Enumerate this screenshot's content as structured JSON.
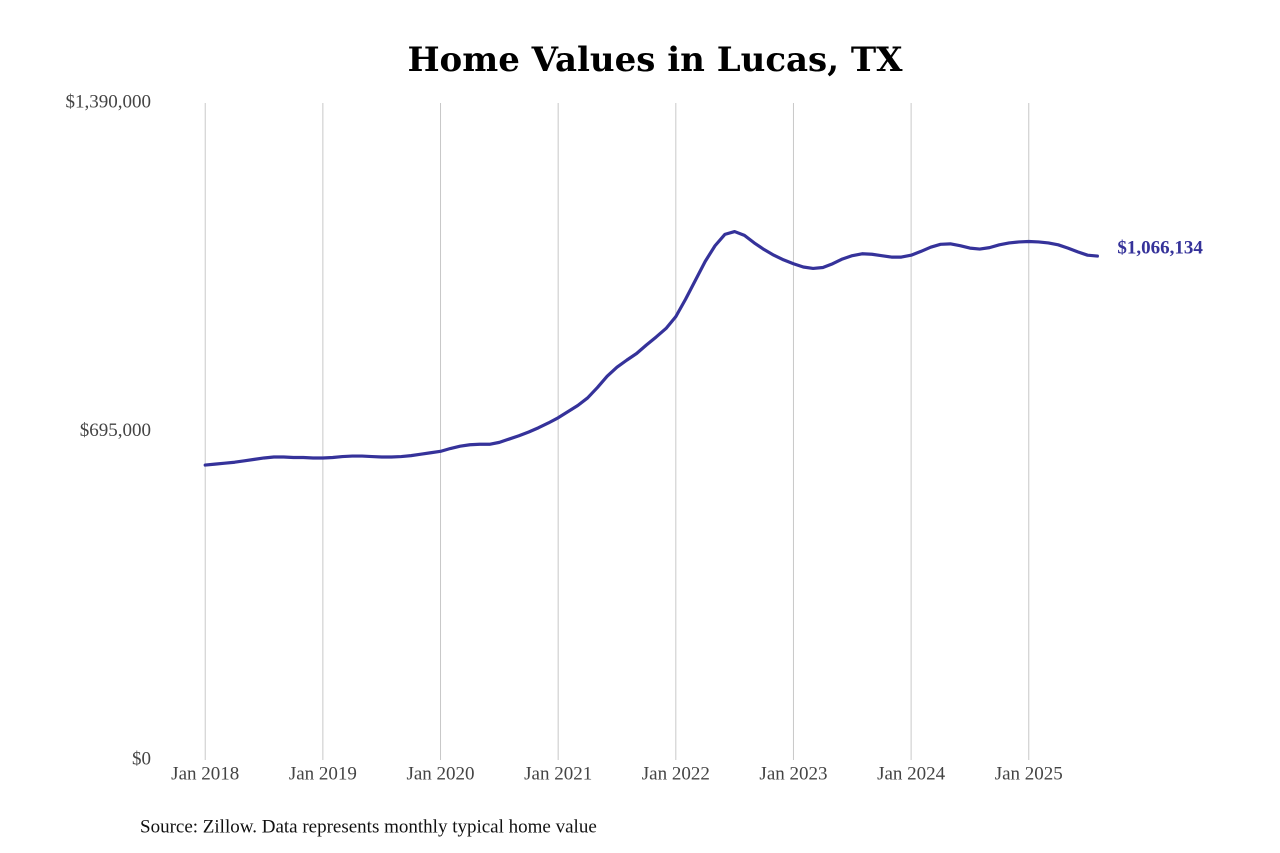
{
  "chart_data": {
    "type": "line",
    "title": "Home Values in Lucas, TX",
    "source": "Source: Zillow. Data represents monthly typical home value",
    "color": "#35329a",
    "x": [
      "2018-01",
      "2018-02",
      "2018-03",
      "2018-04",
      "2018-05",
      "2018-06",
      "2018-07",
      "2018-08",
      "2018-09",
      "2018-10",
      "2018-11",
      "2018-12",
      "2019-01",
      "2019-02",
      "2019-03",
      "2019-04",
      "2019-05",
      "2019-06",
      "2019-07",
      "2019-08",
      "2019-09",
      "2019-10",
      "2019-11",
      "2019-12",
      "2020-01",
      "2020-02",
      "2020-03",
      "2020-04",
      "2020-05",
      "2020-06",
      "2020-07",
      "2020-08",
      "2020-09",
      "2020-10",
      "2020-11",
      "2020-12",
      "2021-01",
      "2021-02",
      "2021-03",
      "2021-04",
      "2021-05",
      "2021-06",
      "2021-07",
      "2021-08",
      "2021-09",
      "2021-10",
      "2021-11",
      "2021-12",
      "2022-01",
      "2022-02",
      "2022-03",
      "2022-04",
      "2022-05",
      "2022-06",
      "2022-07",
      "2022-08",
      "2022-09",
      "2022-10",
      "2022-11",
      "2022-12",
      "2023-01",
      "2023-02",
      "2023-03",
      "2023-04",
      "2023-05",
      "2023-06",
      "2023-07",
      "2023-08",
      "2023-09",
      "2023-10",
      "2023-11",
      "2023-12",
      "2024-01",
      "2024-02",
      "2024-03",
      "2024-04",
      "2024-05",
      "2024-06",
      "2024-07",
      "2024-08",
      "2024-09",
      "2024-10",
      "2024-11",
      "2024-12",
      "2025-01",
      "2025-02",
      "2025-03",
      "2025-04",
      "2025-05",
      "2025-06",
      "2025-07",
      "2025-08"
    ],
    "values": [
      624000,
      626000,
      628000,
      630000,
      633000,
      636000,
      639000,
      641000,
      641000,
      640000,
      640000,
      639000,
      639000,
      640000,
      642000,
      643000,
      643000,
      642000,
      641000,
      641000,
      642000,
      644000,
      647000,
      650000,
      653000,
      659000,
      664000,
      667000,
      668000,
      668000,
      672000,
      679000,
      686000,
      694000,
      703000,
      713000,
      724000,
      737000,
      750000,
      766000,
      788000,
      812000,
      831000,
      846000,
      860000,
      878000,
      895000,
      913000,
      938000,
      975000,
      1015000,
      1055000,
      1088000,
      1112000,
      1118000,
      1110000,
      1094000,
      1080000,
      1068000,
      1058000,
      1050000,
      1043000,
      1040000,
      1042000,
      1050000,
      1060000,
      1067000,
      1071000,
      1070000,
      1067000,
      1064000,
      1064000,
      1068000,
      1076000,
      1085000,
      1091000,
      1092000,
      1088000,
      1083000,
      1081000,
      1084000,
      1090000,
      1094000,
      1096000,
      1097000,
      1096000,
      1094000,
      1090000,
      1083000,
      1075000,
      1068000,
      1066134
    ],
    "value_labels": [
      null,
      null,
      null,
      null,
      null,
      null,
      null,
      null,
      null,
      null,
      null,
      null,
      null,
      null,
      null,
      null,
      null,
      null,
      null,
      null,
      null,
      null,
      null,
      null,
      null,
      null,
      null,
      null,
      null,
      null,
      null,
      null,
      null,
      null,
      null,
      null,
      null,
      null,
      null,
      null,
      null,
      null,
      null,
      null,
      null,
      null,
      null,
      null,
      null,
      null,
      null,
      null,
      null,
      null,
      null,
      null,
      null,
      null,
      null,
      null,
      null,
      null,
      null,
      null,
      null,
      null,
      null,
      null,
      null,
      null,
      null,
      null,
      null,
      null,
      null,
      null,
      null,
      null,
      null,
      null,
      null,
      null,
      null,
      null,
      null,
      null,
      null,
      null,
      null,
      null,
      null,
      "$1,066,134"
    ],
    "xlim": [
      "2017-09",
      "2025-10"
    ],
    "xticks": [
      {
        "value": "2018-01",
        "label": "Jan 2018"
      },
      {
        "value": "2019-01",
        "label": "Jan 2019"
      },
      {
        "value": "2020-01",
        "label": "Jan 2020"
      },
      {
        "value": "2021-01",
        "label": "Jan 2021"
      },
      {
        "value": "2022-01",
        "label": "Jan 2022"
      },
      {
        "value": "2023-01",
        "label": "Jan 2023"
      },
      {
        "value": "2024-01",
        "label": "Jan 2024"
      },
      {
        "value": "2025-01",
        "label": "Jan 2025"
      }
    ],
    "ylim": [
      0,
      1390000
    ],
    "yticks": [
      {
        "value": 0,
        "label": "$0"
      },
      {
        "value": 695000,
        "label": "$695,000"
      },
      {
        "value": 1390000,
        "label": "$1,390,000"
      }
    ],
    "grid": "x"
  }
}
